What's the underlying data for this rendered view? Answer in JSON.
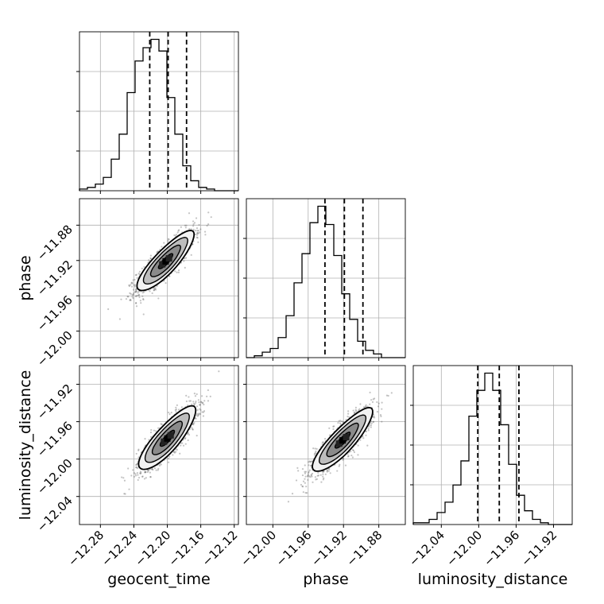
{
  "chart_data": {
    "type": "corner",
    "parameters": [
      "geocent_time",
      "phase",
      "luminosity_distance"
    ],
    "ranges": {
      "geocent_time": [
        -12.305,
        -12.115
      ],
      "phase": [
        -12.03,
        -11.85
      ],
      "luminosity_distance": [
        -12.07,
        -11.9
      ]
    },
    "ticks": {
      "geocent_time": [
        -12.28,
        -12.24,
        -12.2,
        -12.16,
        -12.12
      ],
      "phase": [
        -12.0,
        -11.96,
        -11.92,
        -11.88
      ],
      "luminosity_distance": [
        -12.04,
        -12.0,
        -11.96,
        -11.92
      ]
    },
    "tick_labels": {
      "geocent_time": [
        "−12.28",
        "−12.24",
        "−12.20",
        "−12.16",
        "−12.12"
      ],
      "phase": [
        "−12.00",
        "−11.96",
        "−11.92",
        "−11.88"
      ],
      "luminosity_distance": [
        "−12.04",
        "−12.00",
        "−11.96",
        "−11.92"
      ]
    },
    "grid": true,
    "histograms": {
      "geocent_time": {
        "bins": 20,
        "counts": [
          0.01,
          0.02,
          0.04,
          0.08,
          0.19,
          0.34,
          0.59,
          0.78,
          0.86,
          0.91,
          0.84,
          0.56,
          0.34,
          0.15,
          0.06,
          0.02,
          0.01,
          0.0,
          0.0,
          0.0
        ],
        "quantiles": [
          -12.221,
          -12.199,
          -12.177
        ]
      },
      "phase": {
        "bins": 20,
        "counts": [
          0.0,
          0.01,
          0.03,
          0.05,
          0.11,
          0.23,
          0.41,
          0.57,
          0.74,
          0.83,
          0.73,
          0.56,
          0.35,
          0.21,
          0.09,
          0.04,
          0.02,
          0.0,
          0.0,
          0.0
        ],
        "quantiles": [
          -11.941,
          -11.919,
          -11.898
        ]
      },
      "luminosity_distance": {
        "bins": 20,
        "counts": [
          0.01,
          0.01,
          0.03,
          0.07,
          0.13,
          0.23,
          0.37,
          0.63,
          0.78,
          0.88,
          0.78,
          0.58,
          0.35,
          0.17,
          0.08,
          0.03,
          0.01,
          0.0,
          0.0,
          0.0
        ],
        "quantiles": [
          -12.001,
          -11.978,
          -11.957
        ]
      }
    },
    "correlations": {
      "geocent_time__phase": {
        "mean": [
          -12.202,
          -11.921
        ],
        "sd": [
          0.017,
          0.017
        ],
        "rho": 0.85
      },
      "geocent_time__luminosity_distance": {
        "mean": [
          -12.2,
          -11.978
        ],
        "sd": [
          0.017,
          0.017
        ],
        "rho": 0.84
      },
      "phase__luminosity_distance": {
        "mean": [
          -11.921,
          -11.98
        ],
        "sd": [
          0.017,
          0.017
        ],
        "rho": 0.86
      }
    }
  }
}
